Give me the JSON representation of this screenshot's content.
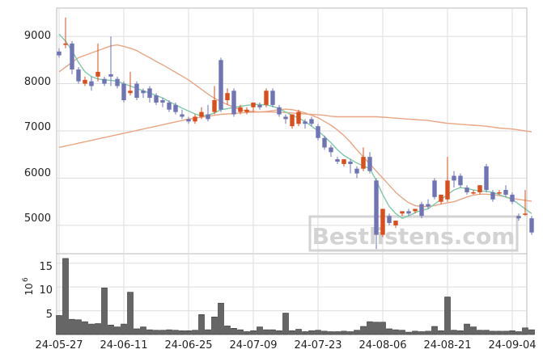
{
  "watermark": "Bestlistens.com",
  "colors": {
    "up": "#d94e1a",
    "down": "#6e74b4",
    "ma_short": "#7ec9a8",
    "ma_mid": "#eaa584",
    "ma_long": "#eaa584",
    "volume": "#666666",
    "grid": "#dddddd"
  },
  "chart_data": [
    {
      "type": "candlestick",
      "ylim": [
        4400,
        9600
      ],
      "y_ticks": [
        5000,
        6000,
        7000,
        8000,
        9000
      ],
      "y_tick_labels": [
        "5000",
        "6000",
        "7000",
        "8000",
        "9000"
      ],
      "x_tick_labels": [
        "24-05-27",
        "24-06-11",
        "24-06-25",
        "24-07-09",
        "24-07-23",
        "24-08-06",
        "24-08-21",
        "24-09-04"
      ],
      "x_tick_index": [
        0,
        10,
        20,
        30,
        40,
        50,
        60,
        70
      ],
      "candles": [
        [
          8680,
          8750,
          8600,
          8550
        ],
        [
          8820,
          9400,
          8850,
          8750
        ],
        [
          8850,
          8900,
          8300,
          8200
        ],
        [
          8300,
          8350,
          8050,
          8000
        ],
        [
          8000,
          8150,
          8080,
          7950
        ],
        [
          8050,
          8150,
          7950,
          7850
        ],
        [
          8150,
          8850,
          8250,
          8050
        ],
        [
          8100,
          8150,
          8000,
          7950
        ],
        [
          8200,
          9000,
          8150,
          7950
        ],
        [
          8100,
          8150,
          7950,
          7900
        ],
        [
          8000,
          8050,
          7650,
          7600
        ],
        [
          7800,
          8250,
          7850,
          7750
        ],
        [
          8000,
          8050,
          7700,
          7650
        ],
        [
          7850,
          7900,
          7800,
          7700
        ],
        [
          7900,
          7950,
          7700,
          7600
        ],
        [
          7750,
          7800,
          7600,
          7550
        ],
        [
          7650,
          7700,
          7600,
          7500
        ],
        [
          7600,
          7650,
          7450,
          7400
        ],
        [
          7550,
          7600,
          7400,
          7350
        ],
        [
          7350,
          7450,
          7300,
          7250
        ],
        [
          7250,
          7300,
          7200,
          7150
        ],
        [
          7200,
          7350,
          7300,
          7150
        ],
        [
          7300,
          7500,
          7400,
          7250
        ],
        [
          7350,
          7550,
          7250,
          7200
        ],
        [
          7400,
          7950,
          7650,
          7350
        ],
        [
          8500,
          8550,
          7450,
          7400
        ],
        [
          7650,
          7900,
          7800,
          7550
        ],
        [
          7850,
          7900,
          7350,
          7300
        ],
        [
          7400,
          7550,
          7500,
          7350
        ],
        [
          7400,
          7500,
          7450,
          7350
        ],
        [
          7500,
          7550,
          7600,
          7400
        ],
        [
          7550,
          7600,
          7500,
          7450
        ],
        [
          7550,
          7900,
          7850,
          7500
        ],
        [
          7850,
          7900,
          7550,
          7500
        ],
        [
          7500,
          7550,
          7350,
          7300
        ],
        [
          7300,
          7350,
          7250,
          7150
        ],
        [
          7100,
          7200,
          7350,
          7050
        ],
        [
          7150,
          7450,
          7400,
          7100
        ],
        [
          7200,
          7250,
          7150,
          7050
        ],
        [
          7250,
          7300,
          7150,
          7100
        ],
        [
          7100,
          7150,
          6850,
          6800
        ],
        [
          6850,
          6900,
          6650,
          6600
        ],
        [
          6650,
          6700,
          6550,
          6450
        ],
        [
          6400,
          6450,
          6350,
          6300
        ],
        [
          6300,
          6350,
          6400,
          6250
        ],
        [
          6350,
          6400,
          6300,
          6100
        ],
        [
          6200,
          6250,
          6100,
          6000
        ],
        [
          6200,
          6650,
          6450,
          6150
        ],
        [
          6450,
          6550,
          6150,
          6100
        ],
        [
          5950,
          6000,
          4800,
          4500
        ],
        [
          4800,
          5200,
          5350,
          4750
        ],
        [
          5200,
          5250,
          5050,
          5000
        ],
        [
          5000,
          5050,
          5100,
          4950
        ],
        [
          5250,
          5300,
          5300,
          5200
        ],
        [
          5300,
          5350,
          5250,
          5200
        ],
        [
          5300,
          5350,
          5350,
          5250
        ],
        [
          5450,
          5500,
          5200,
          5150
        ],
        [
          5450,
          5550,
          5400,
          5350
        ],
        [
          5950,
          6000,
          5600,
          5550
        ],
        [
          5500,
          5650,
          5650,
          5450
        ],
        [
          5550,
          6450,
          5950,
          5500
        ],
        [
          6050,
          6150,
          5950,
          5800
        ],
        [
          6050,
          6100,
          5850,
          5800
        ],
        [
          5800,
          5850,
          5700,
          5650
        ],
        [
          5700,
          5750,
          5700,
          5650
        ],
        [
          5700,
          5850,
          5850,
          5650
        ],
        [
          6250,
          6300,
          5750,
          5700
        ],
        [
          5700,
          5750,
          5550,
          5500
        ],
        [
          5700,
          5750,
          5700,
          5650
        ],
        [
          5750,
          5850,
          5650,
          5600
        ],
        [
          5650,
          5700,
          5500,
          5450
        ],
        [
          5200,
          5250,
          5150,
          5100
        ],
        [
          5250,
          5750,
          5250,
          5200
        ],
        [
          5150,
          5200,
          4850,
          4800
        ]
      ],
      "ma_short": [
        9050,
        8900,
        8700,
        8450,
        8250,
        8150,
        8100,
        8080,
        8070,
        8050,
        8000,
        7950,
        7900,
        7850,
        7800,
        7750,
        7700,
        7620,
        7550,
        7480,
        7420,
        7360,
        7320,
        7330,
        7380,
        7450,
        7470,
        7500,
        7520,
        7540,
        7560,
        7560,
        7550,
        7520,
        7470,
        7400,
        7330,
        7270,
        7200,
        7100,
        7000,
        6880,
        6750,
        6600,
        6480,
        6400,
        6320,
        6260,
        6200,
        5950,
        5650,
        5400,
        5250,
        5150,
        5200,
        5270,
        5320,
        5350,
        5450,
        5550,
        5650,
        5750,
        5800,
        5780,
        5750,
        5730,
        5720,
        5700,
        5650,
        5600,
        5550,
        5450,
        5350,
        5250
      ],
      "ma_mid": [
        8250,
        8350,
        8450,
        8550,
        8600,
        8650,
        8700,
        8750,
        8800,
        8820,
        8790,
        8750,
        8700,
        8620,
        8550,
        8470,
        8400,
        8320,
        8240,
        8160,
        8080,
        7980,
        7880,
        7780,
        7690,
        7620,
        7560,
        7500,
        7450,
        7420,
        7410,
        7400,
        7410,
        7430,
        7450,
        7460,
        7450,
        7420,
        7380,
        7330,
        7280,
        7200,
        7120,
        7020,
        6900,
        6760,
        6600,
        6450,
        6300,
        6150,
        6000,
        5850,
        5700,
        5580,
        5480,
        5420,
        5400,
        5400,
        5420,
        5450,
        5480,
        5500,
        5550,
        5600,
        5640,
        5660,
        5660,
        5650,
        5630,
        5600,
        5570,
        5550,
        5530,
        5510
      ],
      "ma_long": [
        6650,
        6680,
        6710,
        6740,
        6770,
        6800,
        6830,
        6860,
        6890,
        6920,
        6950,
        6980,
        7010,
        7040,
        7070,
        7100,
        7130,
        7160,
        7190,
        7220,
        7250,
        7270,
        7290,
        7310,
        7330,
        7350,
        7360,
        7370,
        7380,
        7390,
        7395,
        7400,
        7400,
        7400,
        7395,
        7390,
        7380,
        7370,
        7360,
        7350,
        7340,
        7330,
        7310,
        7300,
        7300,
        7300,
        7300,
        7300,
        7300,
        7300,
        7290,
        7280,
        7270,
        7260,
        7250,
        7240,
        7230,
        7220,
        7200,
        7180,
        7160,
        7150,
        7140,
        7130,
        7120,
        7110,
        7100,
        7080,
        7060,
        7050,
        7040,
        7020,
        7000,
        6980
      ]
    },
    {
      "type": "bar",
      "ylabel_base": "10",
      "ylabel_exponent": "6",
      "ylim": [
        0,
        17
      ],
      "y_ticks": [
        5,
        10,
        15
      ],
      "y_tick_labels": [
        "5",
        "10",
        "15"
      ],
      "values": [
        4,
        16,
        3.2,
        3.1,
        2.7,
        2.2,
        2.3,
        9.8,
        2,
        1.6,
        2.2,
        8.9,
        1.2,
        1.6,
        1,
        0.9,
        0.9,
        1,
        0.9,
        0.8,
        0.8,
        0.9,
        4.2,
        1,
        3.7,
        6.6,
        1.8,
        1.3,
        1,
        0.6,
        0.8,
        1.6,
        1,
        1,
        0.8,
        4.5,
        0.8,
        1.1,
        0.6,
        0.8,
        0.9,
        0.7,
        0.6,
        0.6,
        0.7,
        0.6,
        0.9,
        1.7,
        2.7,
        2.6,
        2.6,
        1.2,
        1,
        0.9,
        0.5,
        0.7,
        0.6,
        0.7,
        1.7,
        0.8,
        7.9,
        0.9,
        0.8,
        2.2,
        1.6,
        0.9,
        0.9,
        0.7,
        0.7,
        0.7,
        0.8,
        0.6,
        1.4,
        1
      ]
    }
  ]
}
